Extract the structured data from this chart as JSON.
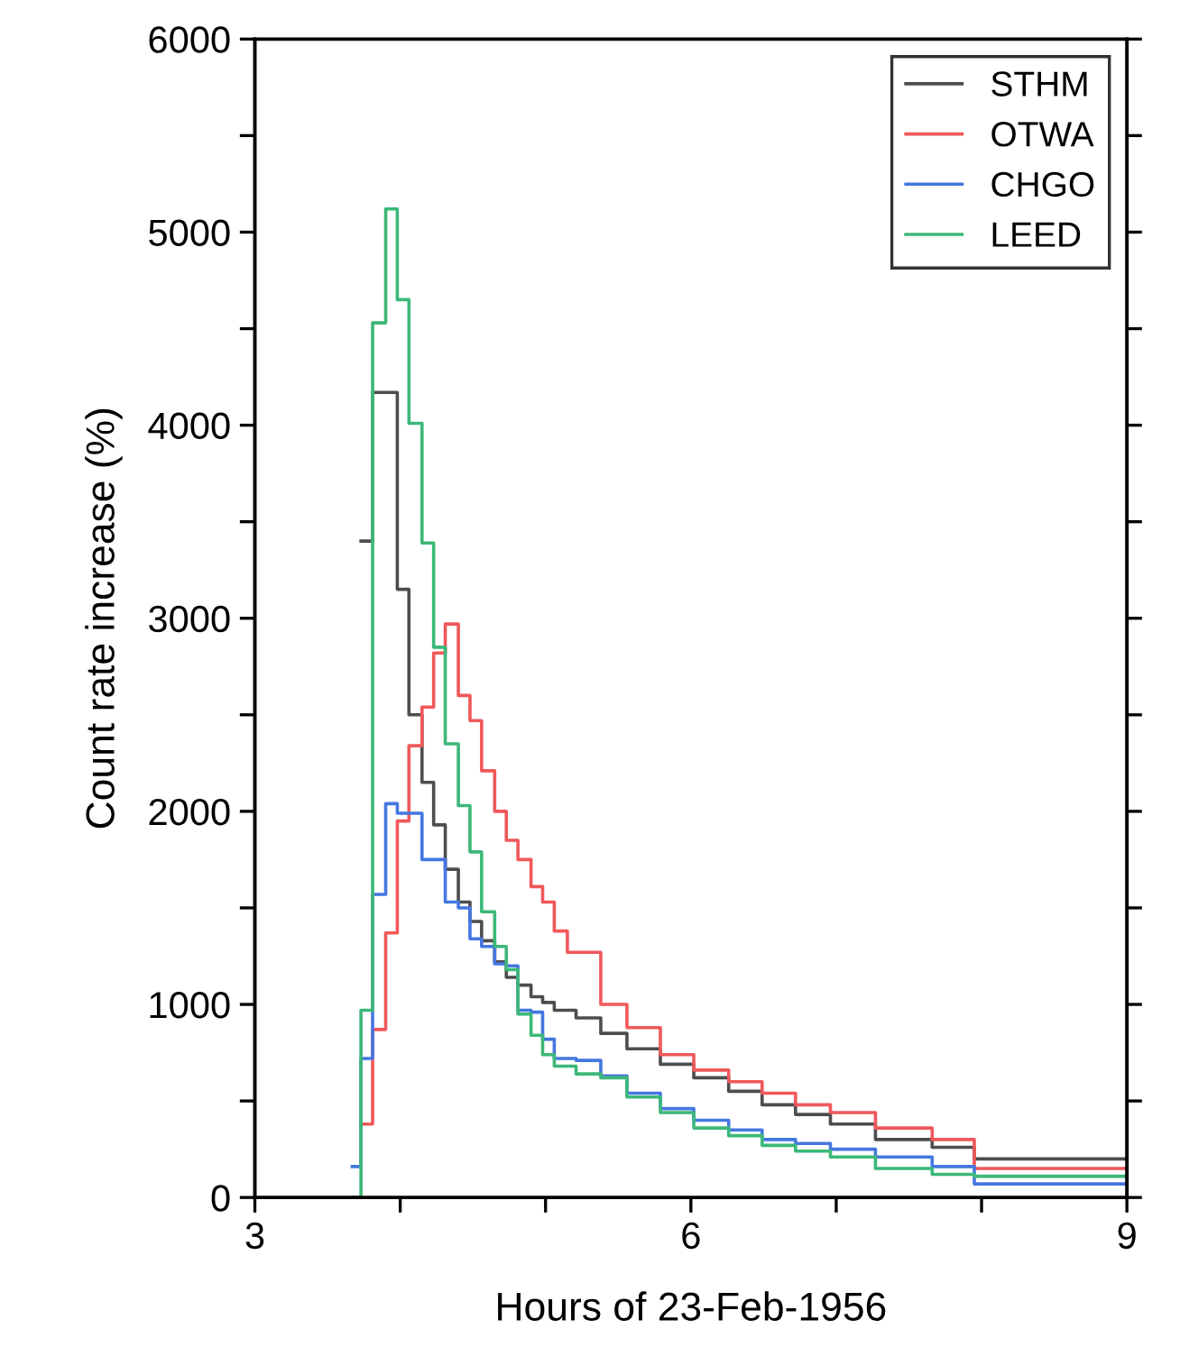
{
  "chart_data": {
    "type": "step",
    "xlabel": "Hours of 23-Feb-1956",
    "ylabel": "Count rate increase (%)",
    "xlim": [
      3,
      9
    ],
    "ylim": [
      0,
      6000
    ],
    "xticks": [
      3,
      {
        "value": 4,
        "label": null
      },
      {
        "value": 5,
        "label": null
      },
      6,
      {
        "value": 7,
        "label": null
      },
      {
        "value": 8,
        "label": null
      },
      9
    ],
    "yticks": [
      0,
      {
        "value": 500,
        "label": null
      },
      1000,
      {
        "value": 1500,
        "label": null
      },
      2000,
      {
        "value": 2500,
        "label": null
      },
      3000,
      {
        "value": 3500,
        "label": null
      },
      4000,
      {
        "value": 4500,
        "label": null
      },
      5000,
      {
        "value": 5500,
        "label": null
      },
      6000
    ],
    "grid": false,
    "legend": "top right",
    "series": [
      {
        "name": "STHM",
        "color": "#4d4d4d",
        "x": [
          3.73,
          3.81,
          3.9,
          3.98,
          4.06,
          4.15,
          4.23,
          4.31,
          4.4,
          4.48,
          4.56,
          4.65,
          4.73,
          4.81,
          4.9,
          4.98,
          5.06,
          5.21,
          5.38,
          5.56,
          5.79,
          6.02,
          6.26,
          6.49,
          6.72,
          6.96,
          7.27,
          7.66,
          7.95,
          9.0
        ],
        "values": [
          3400,
          4170,
          4170,
          3150,
          2500,
          2150,
          1930,
          1700,
          1530,
          1430,
          1330,
          1220,
          1140,
          1100,
          1040,
          1010,
          970,
          930,
          850,
          770,
          690,
          620,
          550,
          480,
          430,
          380,
          300,
          260,
          200,
          200
        ]
      },
      {
        "name": "OTWA",
        "color": "#f0585a",
        "x": [
          3.73,
          3.81,
          3.9,
          3.98,
          4.06,
          4.15,
          4.23,
          4.31,
          4.4,
          4.48,
          4.56,
          4.65,
          4.73,
          4.81,
          4.9,
          4.98,
          5.06,
          5.15,
          5.38,
          5.56,
          5.79,
          6.02,
          6.26,
          6.49,
          6.72,
          6.96,
          7.27,
          7.66,
          7.95,
          9.0
        ],
        "values": [
          380,
          870,
          1370,
          1950,
          2340,
          2540,
          2820,
          2970,
          2600,
          2470,
          2210,
          2000,
          1850,
          1750,
          1610,
          1530,
          1380,
          1270,
          1000,
          880,
          740,
          660,
          600,
          540,
          480,
          440,
          360,
          300,
          150,
          150
        ]
      },
      {
        "name": "CHGO",
        "color": "#4477e0",
        "x": [
          3.67,
          3.73,
          3.81,
          3.9,
          3.98,
          4.06,
          4.15,
          4.23,
          4.31,
          4.4,
          4.48,
          4.56,
          4.65,
          4.73,
          4.81,
          4.9,
          4.98,
          5.06,
          5.21,
          5.38,
          5.56,
          5.79,
          6.02,
          6.26,
          6.49,
          6.72,
          6.96,
          7.27,
          7.66,
          7.95,
          9.0
        ],
        "values": [
          160,
          720,
          1570,
          2040,
          1990,
          1990,
          1750,
          1750,
          1530,
          1500,
          1340,
          1300,
          1210,
          1200,
          970,
          960,
          820,
          720,
          710,
          630,
          540,
          460,
          400,
          350,
          300,
          280,
          250,
          210,
          160,
          70,
          70
        ]
      },
      {
        "name": "LEED",
        "color": "#3cb878",
        "x": [
          3.67,
          3.73,
          3.81,
          3.9,
          3.98,
          4.06,
          4.15,
          4.23,
          4.31,
          4.4,
          4.48,
          4.56,
          4.65,
          4.73,
          4.81,
          4.9,
          4.98,
          5.06,
          5.21,
          5.38,
          5.56,
          5.79,
          6.02,
          6.26,
          6.49,
          6.72,
          6.96,
          7.27,
          7.66,
          7.95,
          9.0
        ],
        "values": [
          0,
          970,
          4530,
          5120,
          4650,
          4010,
          3390,
          2850,
          2350,
          2030,
          1790,
          1480,
          1300,
          1180,
          950,
          840,
          740,
          680,
          640,
          620,
          520,
          440,
          360,
          320,
          270,
          240,
          210,
          150,
          120,
          110,
          110
        ]
      }
    ]
  }
}
